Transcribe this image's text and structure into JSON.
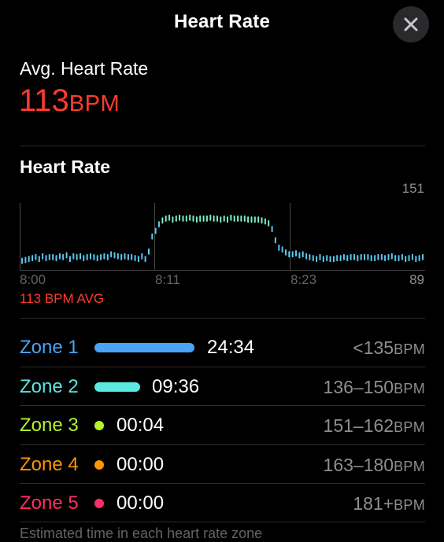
{
  "header": {
    "title": "Heart Rate"
  },
  "close": {
    "icon": "close-icon"
  },
  "summary": {
    "label": "Avg. Heart Rate",
    "value": "113",
    "unit": "BPM",
    "color": "#ff3b30"
  },
  "chart": {
    "title": "Heart Rate",
    "y_max_label": "151",
    "y_min_label": "89",
    "x_labels": [
      "8:00",
      "8:11",
      "8:23"
    ],
    "avg_label": "113 BPM AVG"
  },
  "chart_data": {
    "type": "bar",
    "title": "Heart Rate",
    "xlabel": "",
    "ylabel": "",
    "x_ticks": [
      "8:00",
      "8:11",
      "8:23"
    ],
    "ylim": [
      89,
      151
    ],
    "avg": 113,
    "grid": false,
    "values": [
      96,
      97,
      98,
      99,
      100,
      98,
      101,
      99,
      100,
      100,
      99,
      101,
      100,
      102,
      98,
      101,
      100,
      101,
      99,
      100,
      101,
      100,
      99,
      100,
      101,
      100,
      103,
      102,
      101,
      100,
      101,
      100,
      100,
      99,
      98,
      101,
      98,
      106,
      122,
      128,
      135,
      139,
      141,
      142,
      140,
      141,
      142,
      141,
      141,
      142,
      141,
      140,
      141,
      141,
      141,
      142,
      141,
      141,
      140,
      141,
      140,
      142,
      141,
      141,
      141,
      141,
      140,
      140,
      140,
      140,
      139,
      138,
      136,
      130,
      118,
      110,
      108,
      105,
      103,
      103,
      104,
      102,
      103,
      101,
      100,
      99,
      98,
      100,
      98,
      99,
      98,
      98,
      99,
      99,
      100,
      99,
      100,
      100,
      99,
      100,
      100,
      100,
      99,
      99,
      100,
      100,
      99,
      100,
      101,
      99,
      99,
      100,
      98,
      99,
      100,
      98,
      99,
      100
    ]
  },
  "zones": [
    {
      "name": "Zone 1",
      "time": "24:34",
      "range": "<135",
      "unit": "BPM",
      "color": "#4aa3f5"
    },
    {
      "name": "Zone 2",
      "time": "09:36",
      "range": "136–150",
      "unit": "BPM",
      "color": "#5be8e0"
    },
    {
      "name": "Zone 3",
      "time": "00:04",
      "range": "151–162",
      "unit": "BPM",
      "color": "#b6f52b"
    },
    {
      "name": "Zone 4",
      "time": "00:00",
      "range": "163–180",
      "unit": "BPM",
      "color": "#ff9500"
    },
    {
      "name": "Zone 5",
      "time": "00:00",
      "range": "181+",
      "unit": "BPM",
      "color": "#ff2d6a"
    }
  ],
  "footer": {
    "text": "Estimated time in each heart rate zone"
  }
}
